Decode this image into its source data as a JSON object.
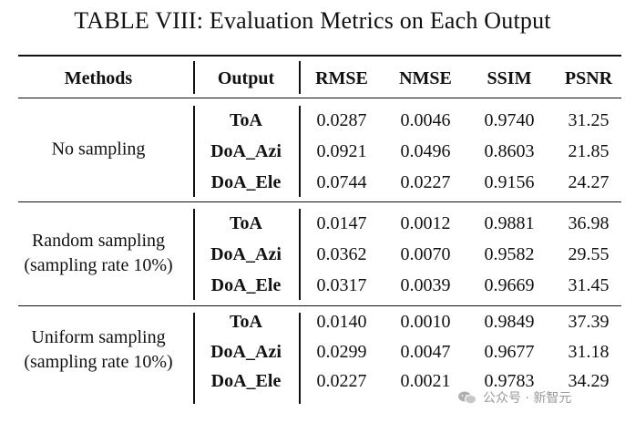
{
  "caption": "TABLE VIII: Evaluation Metrics on Each Output",
  "headers": [
    "Methods",
    "Output",
    "RMSE",
    "NMSE",
    "SSIM",
    "PSNR"
  ],
  "groups": [
    {
      "method": [
        "No sampling"
      ],
      "rows": [
        {
          "output": "ToA",
          "rmse": "0.0287",
          "nmse": "0.0046",
          "ssim": "0.9740",
          "psnr": "31.25"
        },
        {
          "output": "DoA_Azi",
          "rmse": "0.0921",
          "nmse": "0.0496",
          "ssim": "0.8603",
          "psnr": "21.85"
        },
        {
          "output": "DoA_Ele",
          "rmse": "0.0744",
          "nmse": "0.0227",
          "ssim": "0.9156",
          "psnr": "24.27"
        }
      ]
    },
    {
      "method": [
        "Random sampling",
        "(sampling rate 10%)"
      ],
      "rows": [
        {
          "output": "ToA",
          "rmse": "0.0147",
          "nmse": "0.0012",
          "ssim": "0.9881",
          "psnr": "36.98"
        },
        {
          "output": "DoA_Azi",
          "rmse": "0.0362",
          "nmse": "0.0070",
          "ssim": "0.9582",
          "psnr": "29.55"
        },
        {
          "output": "DoA_Ele",
          "rmse": "0.0317",
          "nmse": "0.0039",
          "ssim": "0.9669",
          "psnr": "31.45"
        }
      ]
    },
    {
      "method": [
        "Uniform sampling",
        "(sampling rate 10%)"
      ],
      "rows": [
        {
          "output": "ToA",
          "rmse": "0.0140",
          "nmse": "0.0010",
          "ssim": "0.9849",
          "psnr": "37.39"
        },
        {
          "output": "DoA_Azi",
          "rmse": "0.0299",
          "nmse": "0.0047",
          "ssim": "0.9677",
          "psnr": "31.18"
        },
        {
          "output": "DoA_Ele",
          "rmse": "0.0227",
          "nmse": "0.0021",
          "ssim": "0.9783",
          "psnr": "34.29"
        }
      ]
    }
  ],
  "watermark": {
    "text": "公众号 · 新智元",
    "icon": "wechat-logo-icon",
    "color": "#9a9a9a"
  }
}
